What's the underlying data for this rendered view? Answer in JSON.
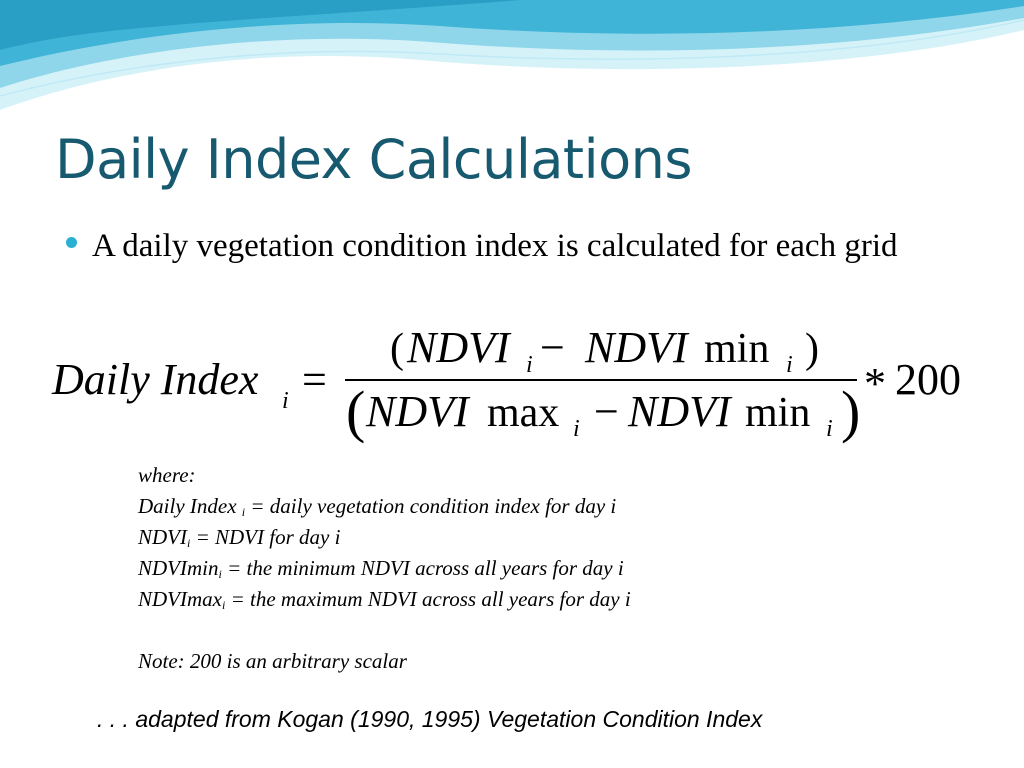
{
  "slide": {
    "title": "Daily Index Calculations",
    "bullet": "A daily vegetation condition index is calculated for each grid",
    "formula": {
      "lhs_name": "Daily Index",
      "subscript": "i",
      "equals": "=",
      "var": "NDVI",
      "min_label": "min",
      "max_label": "max",
      "minus": "−",
      "open_paren": "(",
      "close_paren": ")",
      "multiply": "*",
      "scalar": "200"
    },
    "definitions": {
      "where": "where:",
      "daily_index_term": "Daily Index ",
      "daily_index_sub": "i",
      "daily_index_desc": " = daily vegetation condition index for day i",
      "ndvi_term": "NDVI",
      "ndvi_sub": "i",
      "ndvi_desc": " = NDVI for day i",
      "ndvimin_term": "NDVImin",
      "ndvimin_sub": "i",
      "ndvimin_desc": " = the minimum NDVI across all years for day i",
      "ndvimax_term": "NDVImax",
      "ndvimax_sub": "i",
      "ndvimax_desc": " = the maximum NDVI across all years for day i",
      "note": "Note:  200 is an arbitrary scalar"
    },
    "footer": ". . . adapted from Kogan (1990, 1995) Vegetation Condition Index",
    "colors": {
      "title": "#17596f",
      "bullet": "#2ab0d0",
      "wave_light": "#d6f2f9",
      "wave_mid": "#8fd6ea",
      "wave_dark": "#3fb4d6"
    }
  }
}
